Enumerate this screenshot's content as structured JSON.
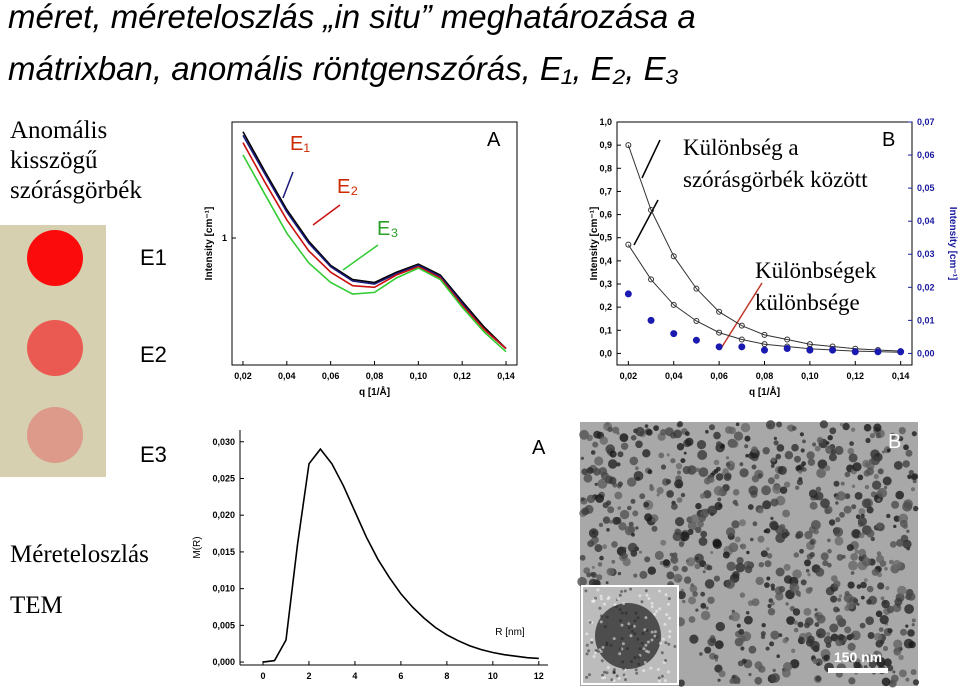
{
  "slide": {
    "title_lines": [
      "méret, méreteloszlás „in situ” meghatározása a",
      "mátrixban, anomális röntgenszórás, E₁, E₂, E₃"
    ],
    "left_heading": [
      "Anomális",
      "kisszögű",
      "szórásgörbék"
    ],
    "samples": [
      {
        "label": "E1",
        "color": "#fb0b0b"
      },
      {
        "label": "E2",
        "color": "#ea5a52"
      },
      {
        "label": "E3",
        "color": "#dd9a8a"
      }
    ],
    "bottom_labels": [
      "Méreteloszlás",
      "TEM"
    ],
    "tem": {
      "panel_label": "B",
      "scale_bar": "150 nm"
    }
  },
  "chart_data": [
    {
      "type": "line",
      "panel_label": "A",
      "xlabel": "q [1/Å]",
      "ylabel": "Intensity [cm⁻¹]",
      "yscale": "log",
      "xlim": [
        0.015,
        0.145
      ],
      "ylim": [
        0.28,
        3.2
      ],
      "yticks": [
        1
      ],
      "xticks": [
        {
          "value": 0.02,
          "label": "0,02"
        },
        {
          "value": 0.04,
          "label": "0,04"
        },
        {
          "value": 0.06,
          "label": "0,06"
        },
        {
          "value": 0.08,
          "label": "0,08"
        },
        {
          "value": 0.1,
          "label": "0,10"
        },
        {
          "value": 0.12,
          "label": "0,12"
        },
        {
          "value": 0.14,
          "label": "0,14"
        }
      ],
      "x": [
        0.02,
        0.03,
        0.04,
        0.05,
        0.06,
        0.07,
        0.08,
        0.09,
        0.1,
        0.11,
        0.12,
        0.13,
        0.14
      ],
      "series": [
        {
          "color": "#000000",
          "values": [
            2.9,
            1.95,
            1.33,
            0.97,
            0.76,
            0.66,
            0.64,
            0.71,
            0.77,
            0.69,
            0.53,
            0.41,
            0.33
          ]
        },
        {
          "color": "#1a1a7a",
          "values": [
            2.8,
            1.9,
            1.3,
            0.95,
            0.75,
            0.65,
            0.63,
            0.7,
            0.76,
            0.68,
            0.52,
            0.4,
            0.33
          ]
        },
        {
          "color": "#cc1111",
          "values": [
            2.6,
            1.75,
            1.2,
            0.88,
            0.71,
            0.62,
            0.61,
            0.69,
            0.75,
            0.67,
            0.51,
            0.4,
            0.33
          ]
        },
        {
          "color": "#33cc33",
          "values": [
            2.3,
            1.55,
            1.05,
            0.78,
            0.64,
            0.57,
            0.58,
            0.67,
            0.74,
            0.66,
            0.5,
            0.39,
            0.32
          ]
        }
      ],
      "annotations": [
        {
          "text": "E₁",
          "color": "#cc2a00"
        },
        {
          "text": "E₂",
          "color": "#cc2a00"
        },
        {
          "text": "E₃",
          "color": "#2aa02a"
        }
      ]
    },
    {
      "type": "line",
      "panel_label": "B",
      "xlabel": "q [1/Å]",
      "ylabel": "Intensity [cm⁻¹]",
      "y2label": "Intensity [cm⁻¹]",
      "xlim": [
        0.015,
        0.145
      ],
      "ylim": [
        -0.05,
        1.0
      ],
      "y2lim": [
        -0.0035,
        0.07
      ],
      "xticks": [
        {
          "value": 0.02,
          "label": "0,02"
        },
        {
          "value": 0.04,
          "label": "0,04"
        },
        {
          "value": 0.06,
          "label": "0,06"
        },
        {
          "value": 0.08,
          "label": "0,08"
        },
        {
          "value": 0.1,
          "label": "0,10"
        },
        {
          "value": 0.12,
          "label": "0,12"
        },
        {
          "value": 0.14,
          "label": "0,14"
        }
      ],
      "yticks": [
        {
          "value": 0,
          "label": "0,0"
        },
        {
          "value": 0.1,
          "label": "0,1"
        },
        {
          "value": 0.2,
          "label": "0,2"
        },
        {
          "value": 0.3,
          "label": "0,3"
        },
        {
          "value": 0.4,
          "label": "0,4"
        },
        {
          "value": 0.5,
          "label": "0,5"
        },
        {
          "value": 0.6,
          "label": "0,6"
        },
        {
          "value": 0.7,
          "label": "0,7"
        },
        {
          "value": 0.8,
          "label": "0,8"
        },
        {
          "value": 0.9,
          "label": "0,9"
        },
        {
          "value": 1,
          "label": "1,0"
        }
      ],
      "y2ticks": [
        {
          "value": 0,
          "label": "0,00"
        },
        {
          "value": 0.01,
          "label": "0,01"
        },
        {
          "value": 0.02,
          "label": "0,02"
        },
        {
          "value": 0.03,
          "label": "0,03"
        },
        {
          "value": 0.04,
          "label": "0,04"
        },
        {
          "value": 0.05,
          "label": "0,05"
        },
        {
          "value": 0.06,
          "label": "0,06"
        },
        {
          "value": 0.07,
          "label": "0,07"
        }
      ],
      "y2color": "#1a1aa0",
      "x": [
        0.02,
        0.03,
        0.04,
        0.05,
        0.06,
        0.07,
        0.08,
        0.09,
        0.1,
        0.11,
        0.12,
        0.13,
        0.14
      ],
      "series": [
        {
          "color": "#333333",
          "marker": "open",
          "values": [
            0.9,
            0.62,
            0.42,
            0.28,
            0.18,
            0.12,
            0.08,
            0.06,
            0.04,
            0.03,
            0.02,
            0.015,
            0.01
          ]
        },
        {
          "color": "#333333",
          "marker": "open",
          "values": [
            0.47,
            0.32,
            0.21,
            0.14,
            0.09,
            0.06,
            0.04,
            0.03,
            0.02,
            0.015,
            0.01,
            0.008,
            0.005
          ]
        },
        {
          "color": "#1a1ab0",
          "marker": "filled",
          "axis": "y2",
          "values": [
            0.018,
            0.01,
            0.006,
            0.004,
            0.002,
            0.002,
            0.001,
            0.0015,
            0.001,
            0.001,
            0.0005,
            0.0005,
            0.0005
          ]
        }
      ],
      "annotations": [
        {
          "text": "Különbség a",
          "color": "#000000"
        },
        {
          "text": "szórásgörbék között",
          "color": "#000000"
        },
        {
          "text": "Különbségek",
          "color": "#000000"
        },
        {
          "text": "különbsége",
          "color": "#000000"
        }
      ]
    },
    {
      "type": "line",
      "panel_label": "A",
      "xlabel": "R [nm]",
      "ylabel": "M(R)",
      "xlim": [
        -1,
        12.4
      ],
      "ylim": [
        -0.0004,
        0.0316
      ],
      "xticks": [
        0,
        2,
        4,
        6,
        8,
        10,
        12
      ],
      "yticks": [
        {
          "value": 0,
          "label": "0,000"
        },
        {
          "value": 0.005,
          "label": "0,005"
        },
        {
          "value": 0.01,
          "label": "0,010"
        },
        {
          "value": 0.015,
          "label": "0,015"
        },
        {
          "value": 0.02,
          "label": "0,020"
        },
        {
          "value": 0.025,
          "label": "0,025"
        },
        {
          "value": 0.03,
          "label": "0,030"
        }
      ],
      "x": [
        0,
        0.5,
        1,
        1.5,
        2,
        2.5,
        3,
        3.5,
        4,
        4.5,
        5,
        5.5,
        6,
        6.5,
        7,
        7.5,
        8,
        8.5,
        9,
        9.5,
        10,
        10.5,
        11,
        11.5,
        12
      ],
      "series": [
        {
          "color": "#000000",
          "values": [
            0,
            0.0002,
            0.003,
            0.016,
            0.027,
            0.029,
            0.027,
            0.024,
            0.0205,
            0.017,
            0.014,
            0.0115,
            0.0093,
            0.0075,
            0.006,
            0.0047,
            0.0037,
            0.0029,
            0.0022,
            0.0017,
            0.0013,
            0.001,
            0.0008,
            0.0006,
            0.0005
          ]
        }
      ]
    }
  ]
}
